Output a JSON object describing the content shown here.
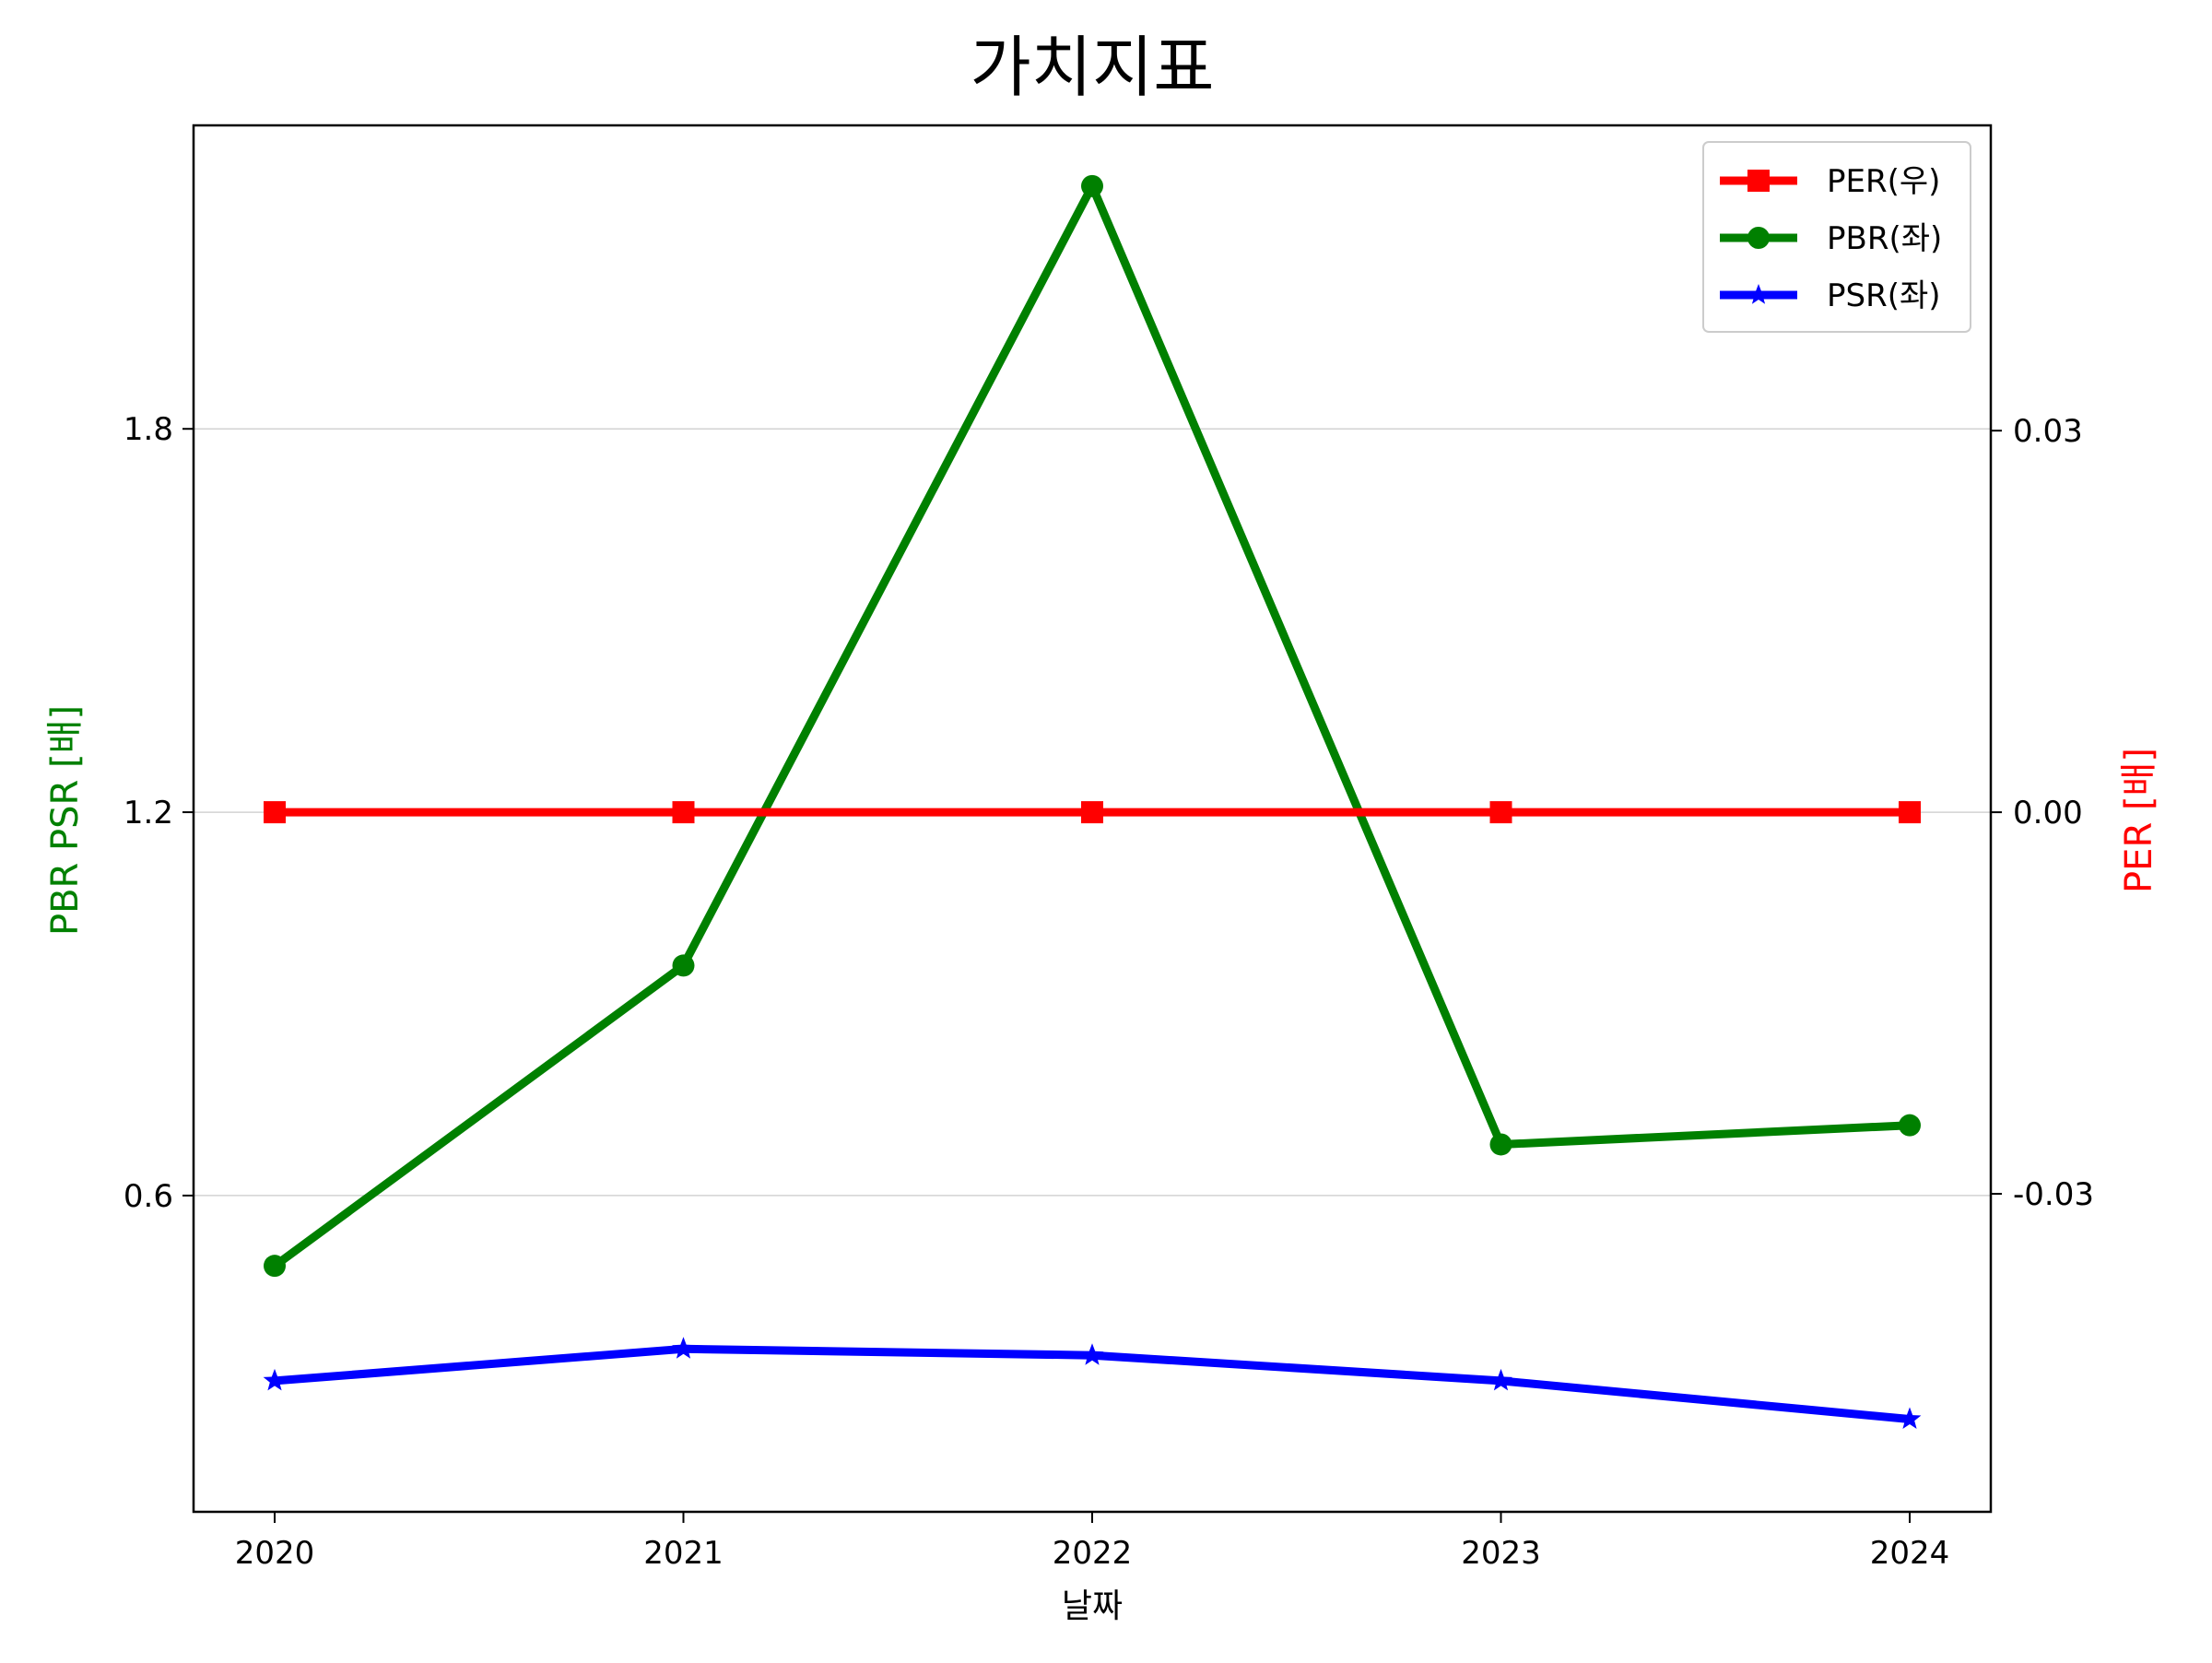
{
  "chart_data": {
    "type": "line",
    "title": "가치지표",
    "xlabel": "날짜",
    "ylabel_left": "PBR PSR [배]",
    "ylabel_right": "PER [배]",
    "categories": [
      "2020",
      "2021",
      "2022",
      "2023",
      "2024"
    ],
    "left_ticks": [
      "0.6",
      "1.2",
      "1.8"
    ],
    "right_ticks": [
      "-0.03",
      "0.00",
      "0.03"
    ],
    "ylim_left": [
      0.105,
      2.275
    ],
    "ylim_right": [
      -0.055,
      0.054
    ],
    "grid": "horizontal (left axis)",
    "legend_position": "top-right",
    "series": [
      {
        "name": "PER(우)",
        "axis": "right",
        "color": "#ff0000",
        "marker": "square",
        "values": [
          0,
          0,
          0,
          0,
          0
        ]
      },
      {
        "name": "PBR(좌)",
        "axis": "left",
        "color": "#008000",
        "marker": "circle",
        "values": [
          0.49,
          0.96,
          2.18,
          0.68,
          0.71
        ]
      },
      {
        "name": "PSR(좌)",
        "axis": "left",
        "color": "#0000ff",
        "marker": "star",
        "values": [
          0.31,
          0.36,
          0.35,
          0.31,
          0.25
        ]
      }
    ]
  }
}
